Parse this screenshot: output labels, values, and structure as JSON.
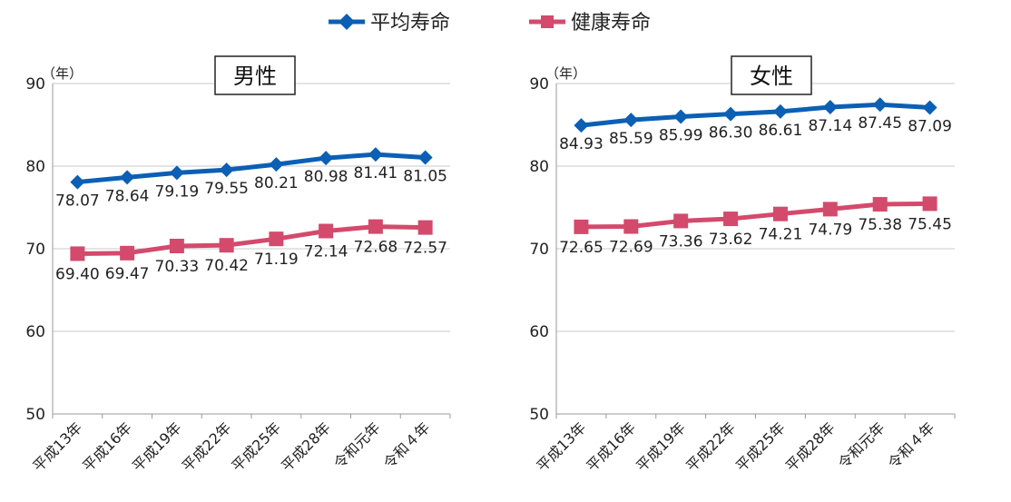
{
  "legend": {
    "items": [
      {
        "label": "平均寿命",
        "color": "#0b5fb4",
        "marker": "diamond"
      },
      {
        "label": "健康寿命",
        "color": "#d34a6c",
        "marker": "square"
      }
    ]
  },
  "chart_data": [
    {
      "type": "line",
      "title": "男性",
      "y_unit": "（年）",
      "categories": [
        "平成13年",
        "平成16年",
        "平成19年",
        "平成22年",
        "平成25年",
        "平成28年",
        "令和元年",
        "令和４年"
      ],
      "ylim": [
        50,
        90
      ],
      "yticks": [
        50,
        60,
        70,
        80,
        90
      ],
      "grid": true,
      "series": [
        {
          "name": "平均寿命",
          "values": [
            78.07,
            78.64,
            79.19,
            79.55,
            80.21,
            80.98,
            81.41,
            81.05
          ]
        },
        {
          "name": "健康寿命",
          "values": [
            69.4,
            69.47,
            70.33,
            70.42,
            71.19,
            72.14,
            72.68,
            72.57
          ]
        }
      ]
    },
    {
      "type": "line",
      "title": "女性",
      "y_unit": "（年）",
      "categories": [
        "平成13年",
        "平成16年",
        "平成19年",
        "平成22年",
        "平成25年",
        "平成28年",
        "令和元年",
        "令和４年"
      ],
      "ylim": [
        50,
        90
      ],
      "yticks": [
        50,
        60,
        70,
        80,
        90
      ],
      "grid": true,
      "series": [
        {
          "name": "平均寿命",
          "values": [
            84.93,
            85.59,
            85.99,
            86.3,
            86.61,
            87.14,
            87.45,
            87.09
          ]
        },
        {
          "name": "健康寿命",
          "values": [
            72.65,
            72.69,
            73.36,
            73.62,
            74.21,
            74.79,
            75.38,
            75.45
          ]
        }
      ]
    }
  ]
}
